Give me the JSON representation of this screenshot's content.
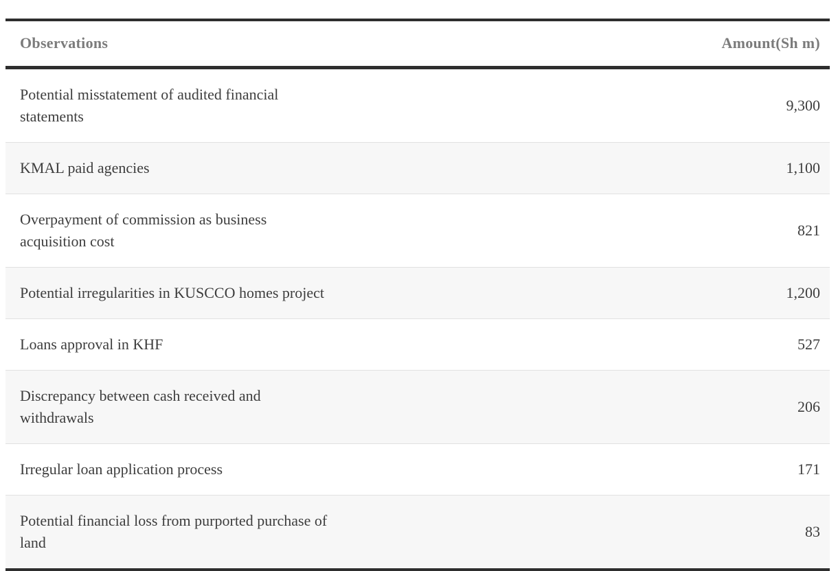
{
  "chart_data": {
    "type": "table",
    "title": "",
    "columns": [
      {
        "label": "Observations"
      },
      {
        "label": "Amount(Sh m)"
      }
    ],
    "rows": [
      {
        "observation": "Potential misstatement of audited financial statements",
        "amount": "9,300",
        "amount_value": 9300
      },
      {
        "observation": "KMAL paid agencies",
        "amount": "1,100",
        "amount_value": 1100
      },
      {
        "observation": "Overpayment of commission as business acquisition cost",
        "amount": "821",
        "amount_value": 821
      },
      {
        "observation": "Potential irregularities in KUSCCO homes project",
        "amount": "1,200",
        "amount_value": 1200
      },
      {
        "observation": "Loans approval in KHF",
        "amount": "527",
        "amount_value": 527
      },
      {
        "observation": "Discrepancy between cash received and withdrawals",
        "amount": "206",
        "amount_value": 206
      },
      {
        "observation": "Irregular loan application process",
        "amount": "171",
        "amount_value": 171
      },
      {
        "observation": "Potential financial loss from purported purchase of land",
        "amount": "83",
        "amount_value": 83
      }
    ],
    "layout": {
      "zebra_striping": true,
      "amount_column_alignment": "right"
    }
  },
  "colors": {
    "rule_dark": "#2e2e2e",
    "header_text": "#7b7b7b",
    "body_text": "#3d3d3d",
    "row_alt_background": "#f7f7f7",
    "row_divider": "#e1e1e1",
    "page_background": "#ffffff"
  }
}
